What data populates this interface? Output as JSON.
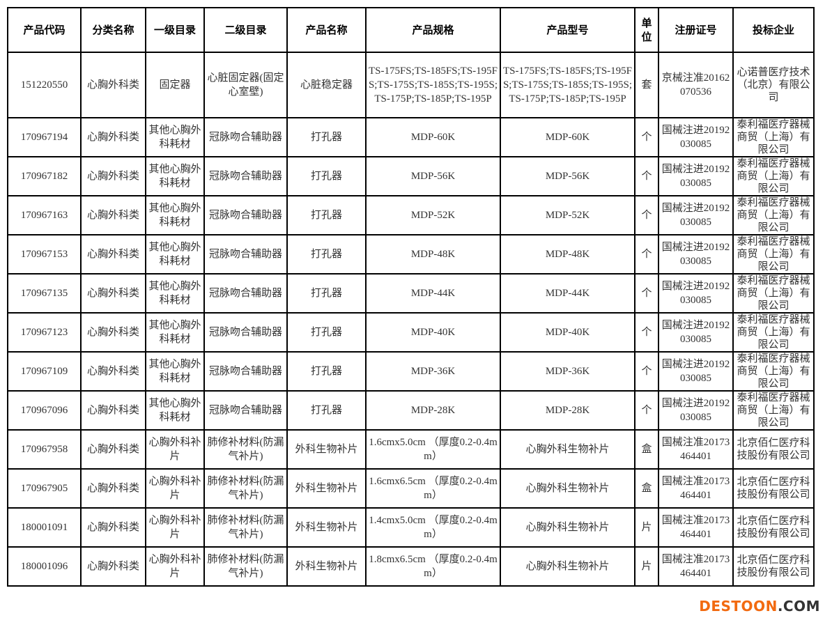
{
  "headers": [
    "产品代码",
    "分类名称",
    "一级目录",
    "二级目录",
    "产品名称",
    "产品规格",
    "产品型号",
    "单位",
    "注册证号",
    "投标企业"
  ],
  "rows": [
    [
      "151220550",
      "心胸外科类",
      "固定器",
      "心脏固定器(固定心室壁)",
      "心脏稳定器",
      "TS-175FS;TS-185FS;TS-195FS;TS-175S;TS-185S;TS-195S;TS-175P;TS-185P;TS-195P",
      "TS-175FS;TS-185FS;TS-195FS;TS-175S;TS-185S;TS-195S;TS-175P;TS-185P;TS-195P",
      "套",
      "京械注准20162070536",
      "心诺普医疗技术（北京）有限公司"
    ],
    [
      "170967194",
      "心胸外科类",
      "其他心胸外科耗材",
      "冠脉吻合辅助器",
      "打孔器",
      "MDP-60K",
      "MDP-60K",
      "个",
      "国械注进20192030085",
      "泰利福医疗器械商贸（上海）有限公司"
    ],
    [
      "170967182",
      "心胸外科类",
      "其他心胸外科耗材",
      "冠脉吻合辅助器",
      "打孔器",
      "MDP-56K",
      "MDP-56K",
      "个",
      "国械注进20192030085",
      "泰利福医疗器械商贸（上海）有限公司"
    ],
    [
      "170967163",
      "心胸外科类",
      "其他心胸外科耗材",
      "冠脉吻合辅助器",
      "打孔器",
      "MDP-52K",
      "MDP-52K",
      "个",
      "国械注进20192030085",
      "泰利福医疗器械商贸（上海）有限公司"
    ],
    [
      "170967153",
      "心胸外科类",
      "其他心胸外科耗材",
      "冠脉吻合辅助器",
      "打孔器",
      "MDP-48K",
      "MDP-48K",
      "个",
      "国械注进20192030085",
      "泰利福医疗器械商贸（上海）有限公司"
    ],
    [
      "170967135",
      "心胸外科类",
      "其他心胸外科耗材",
      "冠脉吻合辅助器",
      "打孔器",
      "MDP-44K",
      "MDP-44K",
      "个",
      "国械注进20192030085",
      "泰利福医疗器械商贸（上海）有限公司"
    ],
    [
      "170967123",
      "心胸外科类",
      "其他心胸外科耗材",
      "冠脉吻合辅助器",
      "打孔器",
      "MDP-40K",
      "MDP-40K",
      "个",
      "国械注进20192030085",
      "泰利福医疗器械商贸（上海）有限公司"
    ],
    [
      "170967109",
      "心胸外科类",
      "其他心胸外科耗材",
      "冠脉吻合辅助器",
      "打孔器",
      "MDP-36K",
      "MDP-36K",
      "个",
      "国械注进20192030085",
      "泰利福医疗器械商贸（上海）有限公司"
    ],
    [
      "170967096",
      "心胸外科类",
      "其他心胸外科耗材",
      "冠脉吻合辅助器",
      "打孔器",
      "MDP-28K",
      "MDP-28K",
      "个",
      "国械注进20192030085",
      "泰利福医疗器械商贸（上海）有限公司"
    ],
    [
      "170967958",
      "心胸外科类",
      "心胸外科补片",
      "肺修补材料(防漏气补片)",
      "外科生物补片",
      "1.6cmx5.0cm （厚度0.2-0.4mm）",
      "心胸外科生物补片",
      "盒",
      "国械注准20173464401",
      "北京佰仁医疗科技股份有限公司"
    ],
    [
      "170967905",
      "心胸外科类",
      "心胸外科补片",
      "肺修补材料(防漏气补片)",
      "外科生物补片",
      "1.6cmx6.5cm （厚度0.2-0.4mm）",
      "心胸外科生物补片",
      "盒",
      "国械注准20173464401",
      "北京佰仁医疗科技股份有限公司"
    ],
    [
      "180001091",
      "心胸外科类",
      "心胸外科补片",
      "肺修补材料(防漏气补片)",
      "外科生物补片",
      "1.4cmx5.0cm （厚度0.2-0.4mm）",
      "心胸外科生物补片",
      "片",
      "国械注准20173464401",
      "北京佰仁医疗科技股份有限公司"
    ],
    [
      "180001096",
      "心胸外科类",
      "心胸外科补片",
      "肺修补材料(防漏气补片)",
      "外科生物补片",
      "1.8cmx6.5cm （厚度0.2-0.4mm）",
      "心胸外科生物补片",
      "片",
      "国械注准20173464401",
      "北京佰仁医疗科技股份有限公司"
    ]
  ],
  "watermark": {
    "part1": "DESTOON",
    "part2": ".COM",
    "color1": "#f26a10",
    "color2": "#333333"
  }
}
